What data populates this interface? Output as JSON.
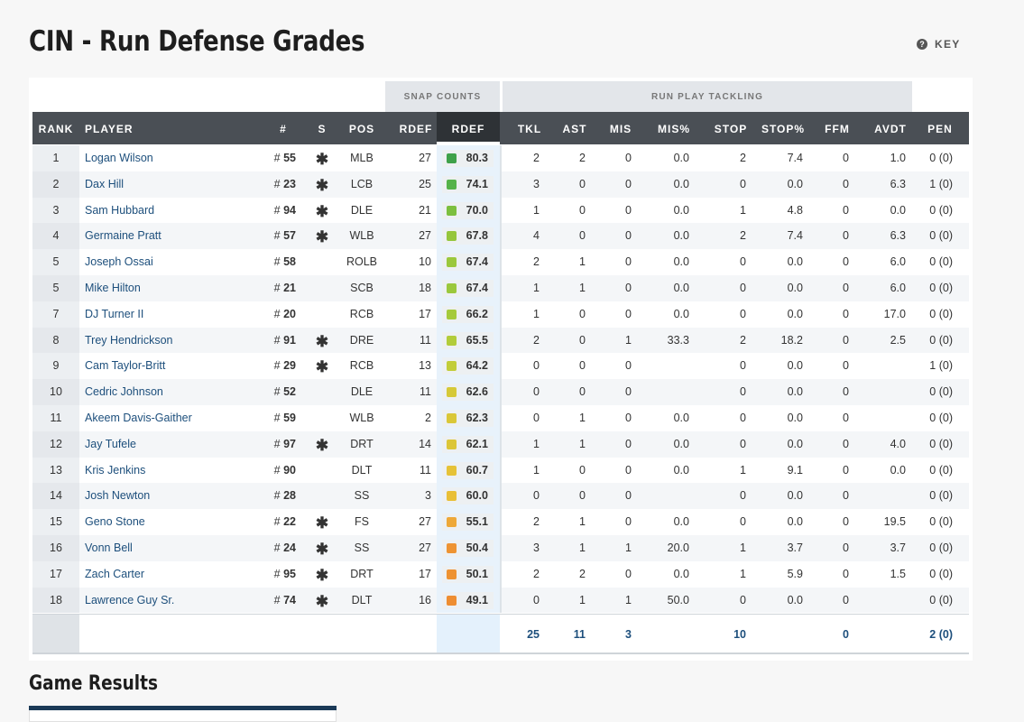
{
  "page_title": "CIN - Run Defense Grades",
  "key_label": "KEY",
  "key_icon": "question-circle-icon",
  "groups": {
    "snap": "SNAP COUNTS",
    "run": "RUN PLAY TACKLING"
  },
  "headers": {
    "rank": "RANK",
    "player": "PLAYER",
    "num": "#",
    "s": "S",
    "pos": "POS",
    "rdef_snaps": "RDEF",
    "rdef_grade": "RDEF",
    "tkl": "TKL",
    "ast": "AST",
    "mis": "MIS",
    "mis_pct": "MIS%",
    "stop": "STOP",
    "stop_pct": "STOP%",
    "ffm": "FFM",
    "avdt": "AVDT",
    "pen": "PEN"
  },
  "rows": [
    {
      "rank": "1",
      "player": "Logan Wilson",
      "hash": "#",
      "num": "55",
      "starter": "✱",
      "pos": "MLB",
      "snaps": "27",
      "grade": "80.3",
      "color": "#3fa14a",
      "tkl": "2",
      "ast": "2",
      "mis": "0",
      "mis_pct": "0.0",
      "stop": "2",
      "stop_pct": "7.4",
      "ffm": "0",
      "avdt": "1.0",
      "pen": "0 (0)"
    },
    {
      "rank": "2",
      "player": "Dax Hill",
      "hash": "#",
      "num": "23",
      "starter": "✱",
      "pos": "LCB",
      "snaps": "25",
      "grade": "74.1",
      "color": "#55b34a",
      "tkl": "3",
      "ast": "0",
      "mis": "0",
      "mis_pct": "0.0",
      "stop": "0",
      "stop_pct": "0.0",
      "ffm": "0",
      "avdt": "6.3",
      "pen": "1 (0)"
    },
    {
      "rank": "3",
      "player": "Sam Hubbard",
      "hash": "#",
      "num": "94",
      "starter": "✱",
      "pos": "DLE",
      "snaps": "21",
      "grade": "70.0",
      "color": "#7cbf3e",
      "tkl": "1",
      "ast": "0",
      "mis": "0",
      "mis_pct": "0.0",
      "stop": "1",
      "stop_pct": "4.8",
      "ffm": "0",
      "avdt": "0.0",
      "pen": "0 (0)"
    },
    {
      "rank": "4",
      "player": "Germaine Pratt",
      "hash": "#",
      "num": "57",
      "starter": "✱",
      "pos": "WLB",
      "snaps": "27",
      "grade": "67.8",
      "color": "#95c63c",
      "tkl": "4",
      "ast": "0",
      "mis": "0",
      "mis_pct": "0.0",
      "stop": "2",
      "stop_pct": "7.4",
      "ffm": "0",
      "avdt": "6.3",
      "pen": "0 (0)"
    },
    {
      "rank": "5",
      "player": "Joseph Ossai",
      "hash": "#",
      "num": "58",
      "starter": "",
      "pos": "ROLB",
      "snaps": "10",
      "grade": "67.4",
      "color": "#9bc83c",
      "tkl": "2",
      "ast": "1",
      "mis": "0",
      "mis_pct": "0.0",
      "stop": "0",
      "stop_pct": "0.0",
      "ffm": "0",
      "avdt": "6.0",
      "pen": "0 (0)"
    },
    {
      "rank": "5",
      "player": "Mike Hilton",
      "hash": "#",
      "num": "21",
      "starter": "",
      "pos": "SCB",
      "snaps": "18",
      "grade": "67.4",
      "color": "#9bc83c",
      "tkl": "1",
      "ast": "1",
      "mis": "0",
      "mis_pct": "0.0",
      "stop": "0",
      "stop_pct": "0.0",
      "ffm": "0",
      "avdt": "6.0",
      "pen": "0 (0)"
    },
    {
      "rank": "7",
      "player": "DJ Turner II",
      "hash": "#",
      "num": "20",
      "starter": "",
      "pos": "RCB",
      "snaps": "17",
      "grade": "66.2",
      "color": "#a5ca3b",
      "tkl": "1",
      "ast": "0",
      "mis": "0",
      "mis_pct": "0.0",
      "stop": "0",
      "stop_pct": "0.0",
      "ffm": "0",
      "avdt": "17.0",
      "pen": "0 (0)"
    },
    {
      "rank": "8",
      "player": "Trey Hendrickson",
      "hash": "#",
      "num": "91",
      "starter": "✱",
      "pos": "DRE",
      "snaps": "11",
      "grade": "65.5",
      "color": "#b2cc3a",
      "tkl": "2",
      "ast": "0",
      "mis": "1",
      "mis_pct": "33.3",
      "stop": "2",
      "stop_pct": "18.2",
      "ffm": "0",
      "avdt": "2.5",
      "pen": "0 (0)"
    },
    {
      "rank": "9",
      "player": "Cam Taylor-Britt",
      "hash": "#",
      "num": "29",
      "starter": "✱",
      "pos": "RCB",
      "snaps": "13",
      "grade": "64.2",
      "color": "#c2cd39",
      "tkl": "0",
      "ast": "0",
      "mis": "0",
      "mis_pct": "",
      "stop": "0",
      "stop_pct": "0.0",
      "ffm": "0",
      "avdt": "",
      "pen": "1 (0)"
    },
    {
      "rank": "10",
      "player": "Cedric Johnson",
      "hash": "#",
      "num": "52",
      "starter": "",
      "pos": "DLE",
      "snaps": "11",
      "grade": "62.6",
      "color": "#d6c937",
      "tkl": "0",
      "ast": "0",
      "mis": "0",
      "mis_pct": "",
      "stop": "0",
      "stop_pct": "0.0",
      "ffm": "0",
      "avdt": "",
      "pen": "0 (0)"
    },
    {
      "rank": "11",
      "player": "Akeem Davis-Gaither",
      "hash": "#",
      "num": "59",
      "starter": "",
      "pos": "WLB",
      "snaps": "2",
      "grade": "62.3",
      "color": "#dac737",
      "tkl": "0",
      "ast": "1",
      "mis": "0",
      "mis_pct": "0.0",
      "stop": "0",
      "stop_pct": "0.0",
      "ffm": "0",
      "avdt": "",
      "pen": "0 (0)"
    },
    {
      "rank": "12",
      "player": "Jay Tufele",
      "hash": "#",
      "num": "97",
      "starter": "✱",
      "pos": "DRT",
      "snaps": "14",
      "grade": "62.1",
      "color": "#dcc637",
      "tkl": "1",
      "ast": "1",
      "mis": "0",
      "mis_pct": "0.0",
      "stop": "0",
      "stop_pct": "0.0",
      "ffm": "0",
      "avdt": "4.0",
      "pen": "0 (0)"
    },
    {
      "rank": "13",
      "player": "Kris Jenkins",
      "hash": "#",
      "num": "90",
      "starter": "",
      "pos": "DLT",
      "snaps": "11",
      "grade": "60.7",
      "color": "#e6c236",
      "tkl": "1",
      "ast": "0",
      "mis": "0",
      "mis_pct": "0.0",
      "stop": "1",
      "stop_pct": "9.1",
      "ffm": "0",
      "avdt": "0.0",
      "pen": "0 (0)"
    },
    {
      "rank": "14",
      "player": "Josh Newton",
      "hash": "#",
      "num": "28",
      "starter": "",
      "pos": "SS",
      "snaps": "3",
      "grade": "60.0",
      "color": "#e9bf36",
      "tkl": "0",
      "ast": "0",
      "mis": "0",
      "mis_pct": "",
      "stop": "0",
      "stop_pct": "0.0",
      "ffm": "0",
      "avdt": "",
      "pen": "0 (0)"
    },
    {
      "rank": "15",
      "player": "Geno Stone",
      "hash": "#",
      "num": "22",
      "starter": "✱",
      "pos": "FS",
      "snaps": "27",
      "grade": "55.1",
      "color": "#eea838",
      "tkl": "2",
      "ast": "1",
      "mis": "0",
      "mis_pct": "0.0",
      "stop": "0",
      "stop_pct": "0.0",
      "ffm": "0",
      "avdt": "19.5",
      "pen": "0 (0)"
    },
    {
      "rank": "16",
      "player": "Vonn Bell",
      "hash": "#",
      "num": "24",
      "starter": "✱",
      "pos": "SS",
      "snaps": "27",
      "grade": "50.4",
      "color": "#ee9332",
      "tkl": "3",
      "ast": "1",
      "mis": "1",
      "mis_pct": "20.0",
      "stop": "1",
      "stop_pct": "3.7",
      "ffm": "0",
      "avdt": "3.7",
      "pen": "0 (0)"
    },
    {
      "rank": "17",
      "player": "Zach Carter",
      "hash": "#",
      "num": "95",
      "starter": "✱",
      "pos": "DRT",
      "snaps": "17",
      "grade": "50.1",
      "color": "#ee9232",
      "tkl": "2",
      "ast": "2",
      "mis": "0",
      "mis_pct": "0.0",
      "stop": "1",
      "stop_pct": "5.9",
      "ffm": "0",
      "avdt": "1.5",
      "pen": "0 (0)"
    },
    {
      "rank": "18",
      "player": "Lawrence Guy Sr.",
      "hash": "#",
      "num": "74",
      "starter": "✱",
      "pos": "DLT",
      "snaps": "16",
      "grade": "49.1",
      "color": "#ee8d31",
      "tkl": "0",
      "ast": "1",
      "mis": "1",
      "mis_pct": "50.0",
      "stop": "0",
      "stop_pct": "0.0",
      "ffm": "0",
      "avdt": "",
      "pen": "0 (0)"
    }
  ],
  "totals": {
    "tkl": "25",
    "ast": "11",
    "mis": "3",
    "stop": "10",
    "ffm": "0",
    "pen": "2 (0)"
  },
  "section_title": "Game Results"
}
